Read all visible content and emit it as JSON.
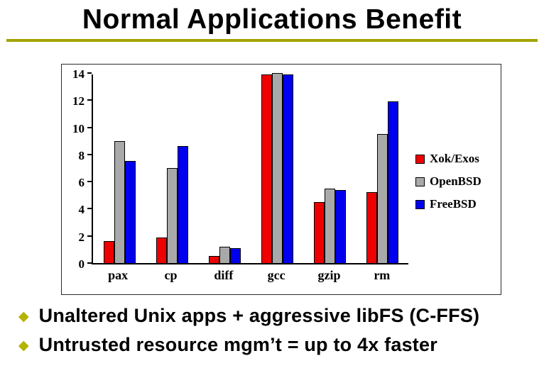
{
  "slide": {
    "title": "Normal Applications Benefit",
    "bullets": [
      "Unaltered Unix apps + aggressive libFS (C-FFS)",
      "Untrusted resource mgm’t = up to 4x faster"
    ]
  },
  "colors": {
    "title_rule": "#a3a300",
    "bullet_diamond": "#b3b300",
    "xok_exos_red": "#ee0000",
    "openbsd_gray": "#a9a9a9",
    "freebsd_blue": "#0000ee"
  },
  "chart_data": {
    "type": "bar",
    "title": "",
    "xlabel": "",
    "ylabel": "",
    "categories": [
      "pax",
      "cp",
      "diff",
      "gcc",
      "gzip",
      "rm"
    ],
    "series": [
      {
        "name": "Xok/Exos",
        "color": "#ee0000",
        "values": [
          1.6,
          1.9,
          0.5,
          13.9,
          4.5,
          5.2
        ]
      },
      {
        "name": "OpenBSD",
        "color": "#a9a9a9",
        "values": [
          9.0,
          7.0,
          1.2,
          14.0,
          5.5,
          9.5
        ]
      },
      {
        "name": "FreeBSD",
        "color": "#0000ee",
        "values": [
          7.5,
          8.6,
          1.1,
          13.9,
          5.4,
          11.9
        ]
      }
    ],
    "ylim": [
      0,
      14
    ],
    "ytick_step": 2,
    "grid": false,
    "legend_position": "right"
  }
}
